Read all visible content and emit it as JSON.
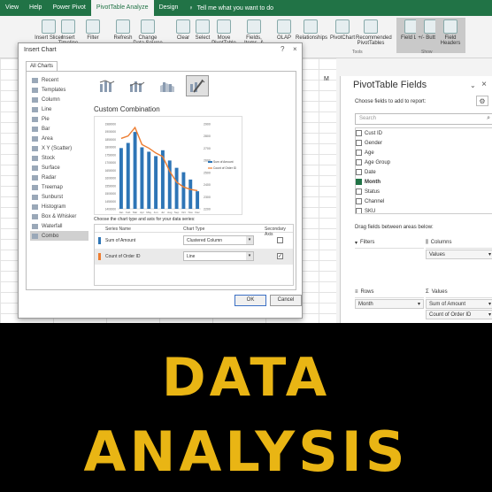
{
  "ribbon": {
    "tabs": [
      "View",
      "Help",
      "Power Pivot",
      "PivotTable Analyze",
      "Design"
    ],
    "active_tab": "PivotTable Analyze",
    "tell_me": "Tell me what you want to do",
    "buttons": [
      "Insert Slicer",
      "Insert Timeline",
      "Filter",
      "Refresh",
      "Change Data Source",
      "Clear",
      "Select",
      "Move PivotTable",
      "Fields, Items, & Sets",
      "OLAP",
      "Relationships",
      "PivotChart",
      "Recommended PivotTables",
      "Field List",
      "+/- Buttons",
      "Field Headers"
    ],
    "groups": [
      "Tools",
      "Show"
    ]
  },
  "sheet": {
    "column_m": "M"
  },
  "pivot": {
    "title": "PivotTable Fields",
    "subtitle": "Choose fields to add to report:",
    "search_placeholder": "Search",
    "fields": [
      {
        "name": "Cust ID",
        "checked": false
      },
      {
        "name": "Gender",
        "checked": false
      },
      {
        "name": "Age",
        "checked": false
      },
      {
        "name": "Age Group",
        "checked": false
      },
      {
        "name": "Date",
        "checked": false
      },
      {
        "name": "Month",
        "checked": true
      },
      {
        "name": "Status",
        "checked": false
      },
      {
        "name": "Channel",
        "checked": false
      },
      {
        "name": "SKU",
        "checked": false
      }
    ],
    "drag_label": "Drag fields between areas below:",
    "filters_label": "Filters",
    "columns_label": "Columns",
    "columns_values": "Values",
    "rows_label": "Rows",
    "rows_item": "Month",
    "values_label": "Values",
    "values_items": [
      "Sum of Amount",
      "Count of Order ID"
    ]
  },
  "dialog": {
    "title": "Insert Chart",
    "tab": "All Charts",
    "chart_types": [
      "Recent",
      "Templates",
      "Column",
      "Line",
      "Pie",
      "Bar",
      "Area",
      "X Y (Scatter)",
      "Stock",
      "Surface",
      "Radar",
      "Treemap",
      "Sunburst",
      "Histogram",
      "Box & Whisker",
      "Waterfall",
      "Combo"
    ],
    "selected_type": "Combo",
    "subtype_title": "Custom Combination",
    "series_prompt": "Choose the chart type and axis for your data series:",
    "headers": {
      "name": "Series Name",
      "type": "Chart Type",
      "axis": "Secondary Axis"
    },
    "series": [
      {
        "name": "Sum of Amount",
        "type": "Clustered Column",
        "secondary": false,
        "color": "#2e75b6"
      },
      {
        "name": "Count of Order ID",
        "type": "Line",
        "secondary": true,
        "color": "#ed7d31"
      }
    ],
    "ok": "OK",
    "cancel": "Cancel"
  },
  "chart_data": {
    "type": "bar",
    "categories": [
      "Jan",
      "Feb",
      "Mar",
      "Apr",
      "May",
      "Jun",
      "Jul",
      "Aug",
      "Sep",
      "Oct",
      "Nov",
      "Dec"
    ],
    "series": [
      {
        "name": "Sum of Amount",
        "chart": "bar",
        "axis": "primary",
        "values": [
          1815000,
          1850000,
          1925000,
          1820000,
          1790000,
          1760000,
          1800000,
          1730000,
          1680000,
          1650000,
          1600000,
          1520000
        ]
      },
      {
        "name": "Count of Order ID",
        "chart": "line",
        "axis": "secondary",
        "values": [
          2780,
          2800,
          2870,
          2730,
          2700,
          2660,
          2630,
          2510,
          2420,
          2380,
          2360,
          2350
        ]
      }
    ],
    "y_ticks": [
      "1980000",
      "1900000",
      "1850000",
      "1800000",
      "1750000",
      "1700000",
      "1650000",
      "1600000",
      "1550000",
      "1500000",
      "1450000",
      "1400000"
    ],
    "y2_ticks": [
      "2900",
      "2800",
      "2700",
      "2600",
      "2500",
      "2400",
      "2300",
      "2200"
    ],
    "ylim": [
      1400000,
      1980000
    ],
    "y2lim": [
      2200,
      2900
    ],
    "legend": "right",
    "title": ""
  },
  "headline": {
    "line1": "DATA",
    "line2": "ANALYSIS"
  },
  "colors": {
    "excel_green": "#217346",
    "headline": "#e9b514"
  }
}
